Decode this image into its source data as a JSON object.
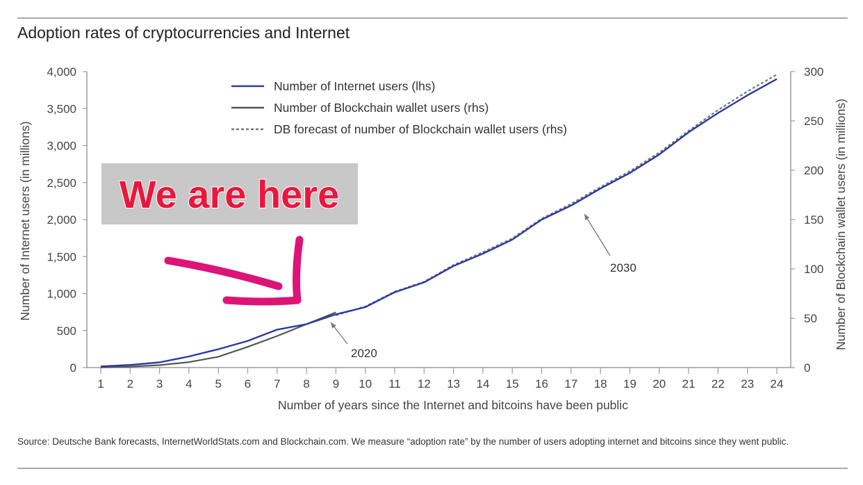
{
  "header": {
    "title": "Adoption rates of cryptocurrencies and Internet"
  },
  "footer": {
    "source": "Source: Deutsche Bank forecasts, InternetWorldStats.com and Blockchain.com. We measure “adoption rate” by the number of users adopting internet and bitcoins since they went public."
  },
  "overlay": {
    "banner_text": "We are here",
    "banner_bg": "#c8c8c8",
    "banner_color": "#e8173f",
    "arrow_color": "#dc1478"
  },
  "chart_data": {
    "type": "line",
    "title": "Adoption rates of cryptocurrencies and Internet",
    "xlabel": "Number of years since the Internet and bitcoins have been public",
    "ylabel": "Number of Internet users (in millions)",
    "y2label": "Number of Blockchain wallet users (in millions)",
    "x": [
      1,
      2,
      3,
      4,
      5,
      6,
      7,
      8,
      9,
      10,
      11,
      12,
      13,
      14,
      15,
      16,
      17,
      18,
      19,
      20,
      21,
      22,
      23,
      24
    ],
    "xlim": [
      1,
      24
    ],
    "ylim": [
      0,
      4000
    ],
    "y2lim": [
      0,
      300
    ],
    "yticks": [
      "0",
      "500",
      "1,000",
      "1,500",
      "2,000",
      "2,500",
      "3,000",
      "3,500",
      "4,000"
    ],
    "yticks_values": [
      0,
      500,
      1000,
      1500,
      2000,
      2500,
      3000,
      3500,
      4000
    ],
    "y2ticks": [
      "0",
      "50",
      "100",
      "150",
      "200",
      "250",
      "300"
    ],
    "y2ticks_values": [
      0,
      50,
      100,
      150,
      200,
      250,
      300
    ],
    "legend_position": "top-center",
    "series": [
      {
        "name": "Number of Internet users (lhs)",
        "axis": "left",
        "color": "#2b3aa0",
        "style": "solid",
        "x": [
          1,
          2,
          3,
          4,
          5,
          6,
          7,
          8,
          9,
          10,
          11,
          12,
          13,
          14,
          15,
          16,
          17,
          18,
          19,
          20,
          21,
          22,
          23,
          24
        ],
        "values": [
          16,
          36,
          70,
          150,
          248,
          361,
          513,
          587,
          719,
          817,
          1018,
          1151,
          1373,
          1540,
          1730,
          2000,
          2190,
          2420,
          2630,
          2880,
          3180,
          3440,
          3680,
          3900
        ]
      },
      {
        "name": "Number of Blockchain wallet users (rhs)",
        "axis": "right",
        "color": "#555555",
        "style": "solid",
        "x": [
          1,
          2,
          3,
          4,
          5,
          6,
          7,
          8,
          9
        ],
        "values": [
          0.2,
          1,
          2.5,
          5.5,
          11,
          21,
          32,
          44,
          56
        ]
      },
      {
        "name": "DB forecast of number of Blockchain wallet users (rhs)",
        "axis": "right",
        "color": "#777777",
        "style": "dashed",
        "x": [
          9,
          10,
          11,
          12,
          13,
          14,
          15,
          16,
          17,
          18,
          19,
          20,
          21,
          22,
          23,
          24
        ],
        "values": [
          53,
          62,
          77,
          87,
          104,
          117,
          131,
          151,
          166,
          183,
          199,
          218,
          240,
          261,
          280,
          297
        ]
      }
    ],
    "annotations": [
      {
        "label": "2020",
        "x": 9
      },
      {
        "label": "2030",
        "x": 17.3
      }
    ]
  }
}
